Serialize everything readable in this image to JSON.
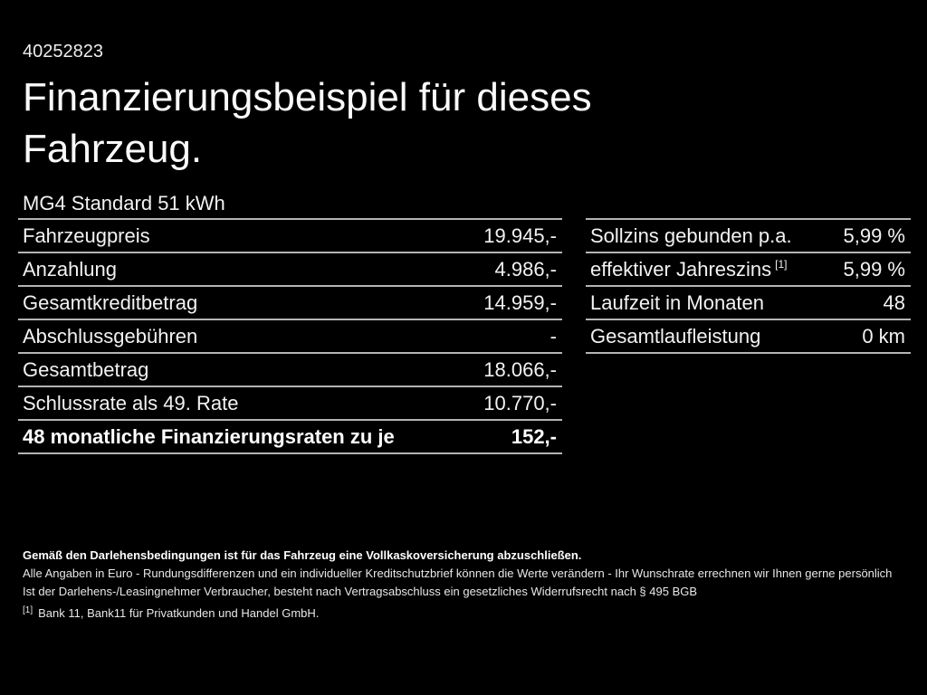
{
  "id_number": "40252823",
  "title_line1": "Finanzierungsbeispiel für dieses",
  "title_line2": "Fahrzeug.",
  "vehicle_model": "MG4 Standard 51 kWh",
  "finance_table": {
    "rows": [
      {
        "label": "Fahrzeugpreis",
        "value": "19.945,-"
      },
      {
        "label": "Anzahlung",
        "value": "4.986,-"
      },
      {
        "label": "Gesamtkreditbetrag",
        "value": "14.959,-"
      },
      {
        "label": "Abschlussgebühren",
        "value": "-"
      },
      {
        "label": "Gesamtbetrag",
        "value": "18.066,-"
      },
      {
        "label": "Schlussrate als 49. Rate",
        "value": "10.770,-"
      },
      {
        "label": "48 monatliche Finanzierungsraten zu je",
        "value": "152,-"
      }
    ]
  },
  "conditions_table": {
    "rows": [
      {
        "label": "Sollzins gebunden p.a.",
        "value": "5,99 %"
      },
      {
        "label": "effektiver Jahreszins",
        "label_sup": "[1]",
        "value": "5,99 %"
      },
      {
        "label": "Laufzeit in Monaten",
        "value": "48"
      },
      {
        "label": "Gesamtlaufleistung",
        "value": "0 km"
      }
    ]
  },
  "footer": {
    "insurance_note": "Gemäß den Darlehensbedingungen ist für das Fahrzeug eine Vollkaskoversicherung abzuschließen.",
    "disclaimer_line1": "Alle Angaben in Euro - Rundungsdifferenzen und ein individueller Kreditschutzbrief können die Werte verändern - Ihr Wunschrate errechnen wir Ihnen gerne persönlich",
    "disclaimer_line2": "Ist der Darlehens-/Leasingnehmer Verbraucher, besteht nach Vertragsabschluss ein gesetzliches Widerrufsrecht nach § 495 BGB",
    "footnote_sup": "[1]",
    "footnote_text": "Bank 11, Bank11 für Privatkunden und Handel GmbH."
  },
  "colors": {
    "background": "#000000",
    "text": "#f2f2f2",
    "divider": "#b4b4b4"
  }
}
